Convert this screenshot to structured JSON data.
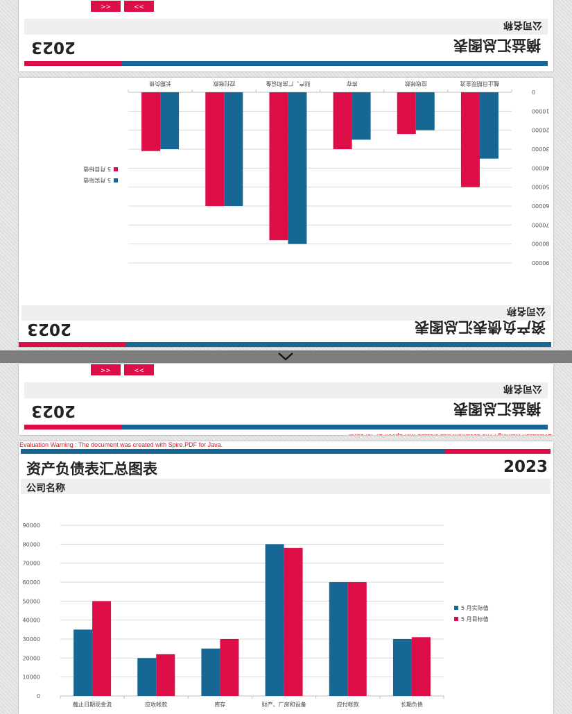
{
  "document": {
    "title": "资产负债表汇总图表",
    "year": "2023",
    "company": "公司名称",
    "summary_title": "摘益汇总图表",
    "nav_prev": "<<",
    "nav_next": ">>",
    "eval_warning": "Evaluation Warning : The document was created with Spire.PDF for Java.",
    "divider_icon": "chevron-down-icon"
  },
  "colors": {
    "red": "#dc0d47",
    "blue": "#176794",
    "panel": "#efefef"
  },
  "chart_data": {
    "type": "bar",
    "categories": [
      "截止日期现金流",
      "应收帐款",
      "库存",
      "财产、厂房和设备",
      "应付帐款",
      "长期负债"
    ],
    "series": [
      {
        "name": "5 月实际值",
        "values": [
          35000,
          20000,
          25000,
          80000,
          60000,
          30000
        ],
        "color": "#176794"
      },
      {
        "name": "5 月目标值",
        "values": [
          50000,
          22000,
          30000,
          78000,
          60000,
          31000
        ],
        "color": "#dc0d47"
      }
    ],
    "yticks": [
      "0",
      "10000",
      "20000",
      "30000",
      "40000",
      "50000",
      "60000",
      "70000",
      "80000",
      "90000"
    ],
    "ylim": [
      0,
      90000
    ],
    "grid": true,
    "legend": "right"
  }
}
